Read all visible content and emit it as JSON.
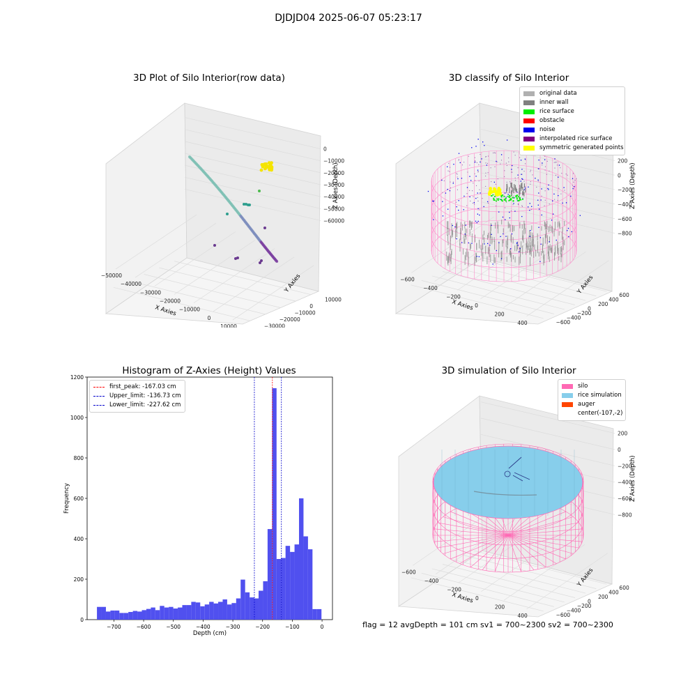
{
  "suptitle": "DJDJD04 2025-06-07 05:23:17",
  "chart_data": [
    {
      "type": "scatter",
      "title": "3D Plot of Silo Interior(row data)",
      "xlabel": "X Axies",
      "ylabel": "Y Axies",
      "zlabel": "Z Axies (Depth)",
      "x_ticks": [
        -50000,
        -40000,
        -30000,
        -20000,
        -10000,
        0,
        10000
      ],
      "y_ticks": [
        -30000,
        -20000,
        -10000,
        0,
        10000
      ],
      "z_ticks": [
        -60000,
        -50000,
        -40000,
        -30000,
        -20000,
        -10000,
        0
      ],
      "grid": true,
      "colors": {
        "arc": "#7ec0b4",
        "arc_end": "#7b3fa0",
        "yellow": "#f5e400",
        "teal": "#2e9e8e",
        "purple": "#6a3a8f",
        "green": "#4dbb4d"
      }
    },
    {
      "type": "scatter",
      "title": "3D classify of Silo Interior",
      "xlabel": "X Axies",
      "ylabel": "Y Axies",
      "zlabel": "Z Axies (Depth)",
      "x_ticks": [
        -600,
        -400,
        -200,
        0,
        200,
        400
      ],
      "y_ticks": [
        -600,
        -400,
        -200,
        0,
        200,
        400,
        600
      ],
      "z_ticks": [
        -800,
        -600,
        -400,
        -200,
        0,
        200
      ],
      "grid": true,
      "legend": [
        {
          "label": "original data",
          "color": "#b0b0b0"
        },
        {
          "label": "inner wall",
          "color": "#808080"
        },
        {
          "label": "rice surface",
          "color": "#00ee00"
        },
        {
          "label": "obstacle",
          "color": "#ff0000"
        },
        {
          "label": "noise",
          "color": "#0000ee"
        },
        {
          "label": "interpolated rice surface",
          "color": "#800080"
        },
        {
          "label": "symmetric generated points",
          "color": "#ffff00"
        }
      ]
    },
    {
      "type": "bar",
      "title": "Histogram of Z-Axies (Height) Values",
      "xlabel": "Depth (cm)",
      "ylabel": "Frequency",
      "xlim": [
        -790,
        35
      ],
      "ylim": [
        0,
        1200
      ],
      "x_ticks": [
        -700,
        -600,
        -500,
        -400,
        -300,
        -200,
        -100,
        0
      ],
      "y_ticks": [
        0,
        200,
        400,
        600,
        800,
        1000,
        1200
      ],
      "bar_color": "#4a4aee",
      "bins": {
        "start": -757,
        "width": 15.1
      },
      "values": [
        63,
        63,
        40,
        45,
        45,
        33,
        33,
        38,
        43,
        40,
        47,
        53,
        60,
        47,
        68,
        60,
        63,
        55,
        60,
        72,
        72,
        88,
        85,
        66,
        75,
        88,
        80,
        88,
        100,
        75,
        82,
        105,
        198,
        135,
        110,
        105,
        143,
        190,
        448,
        1145,
        300,
        305,
        365,
        335,
        372,
        600,
        412,
        348,
        52,
        52
      ],
      "vlines": [
        {
          "label": "first_peak: -167.03 cm",
          "x": -167.03,
          "color": "#ff0000"
        },
        {
          "label": "Upper_limit: -136.73 cm",
          "x": -136.73,
          "color": "#0000cc"
        },
        {
          "label": "Lower_limit: -227.62 cm",
          "x": -227.62,
          "color": "#0000cc"
        }
      ]
    },
    {
      "type": "surface",
      "title": "3D simulation of Silo Interior",
      "xlabel": "X Axies",
      "ylabel": "Y Axies",
      "zlabel": "Z Axies (Depth)",
      "x_ticks": [
        -600,
        -400,
        -200,
        0,
        200,
        400
      ],
      "y_ticks": [
        -600,
        -400,
        -200,
        0,
        200,
        400,
        600
      ],
      "z_ticks": [
        -800,
        -600,
        -400,
        -200,
        0,
        200
      ],
      "grid": true,
      "legend": [
        {
          "label": "silo",
          "color": "#ff69b4"
        },
        {
          "label": "rice simulation",
          "color": "#87ceeb"
        },
        {
          "label": "auger",
          "color": "#ff4500"
        },
        {
          "label": "center(-107,-2)",
          "color": ""
        }
      ]
    }
  ],
  "footer": "flag = 12   avgDepth = 101 cm   sv1 = 700~2300  sv2 = 700~2300"
}
